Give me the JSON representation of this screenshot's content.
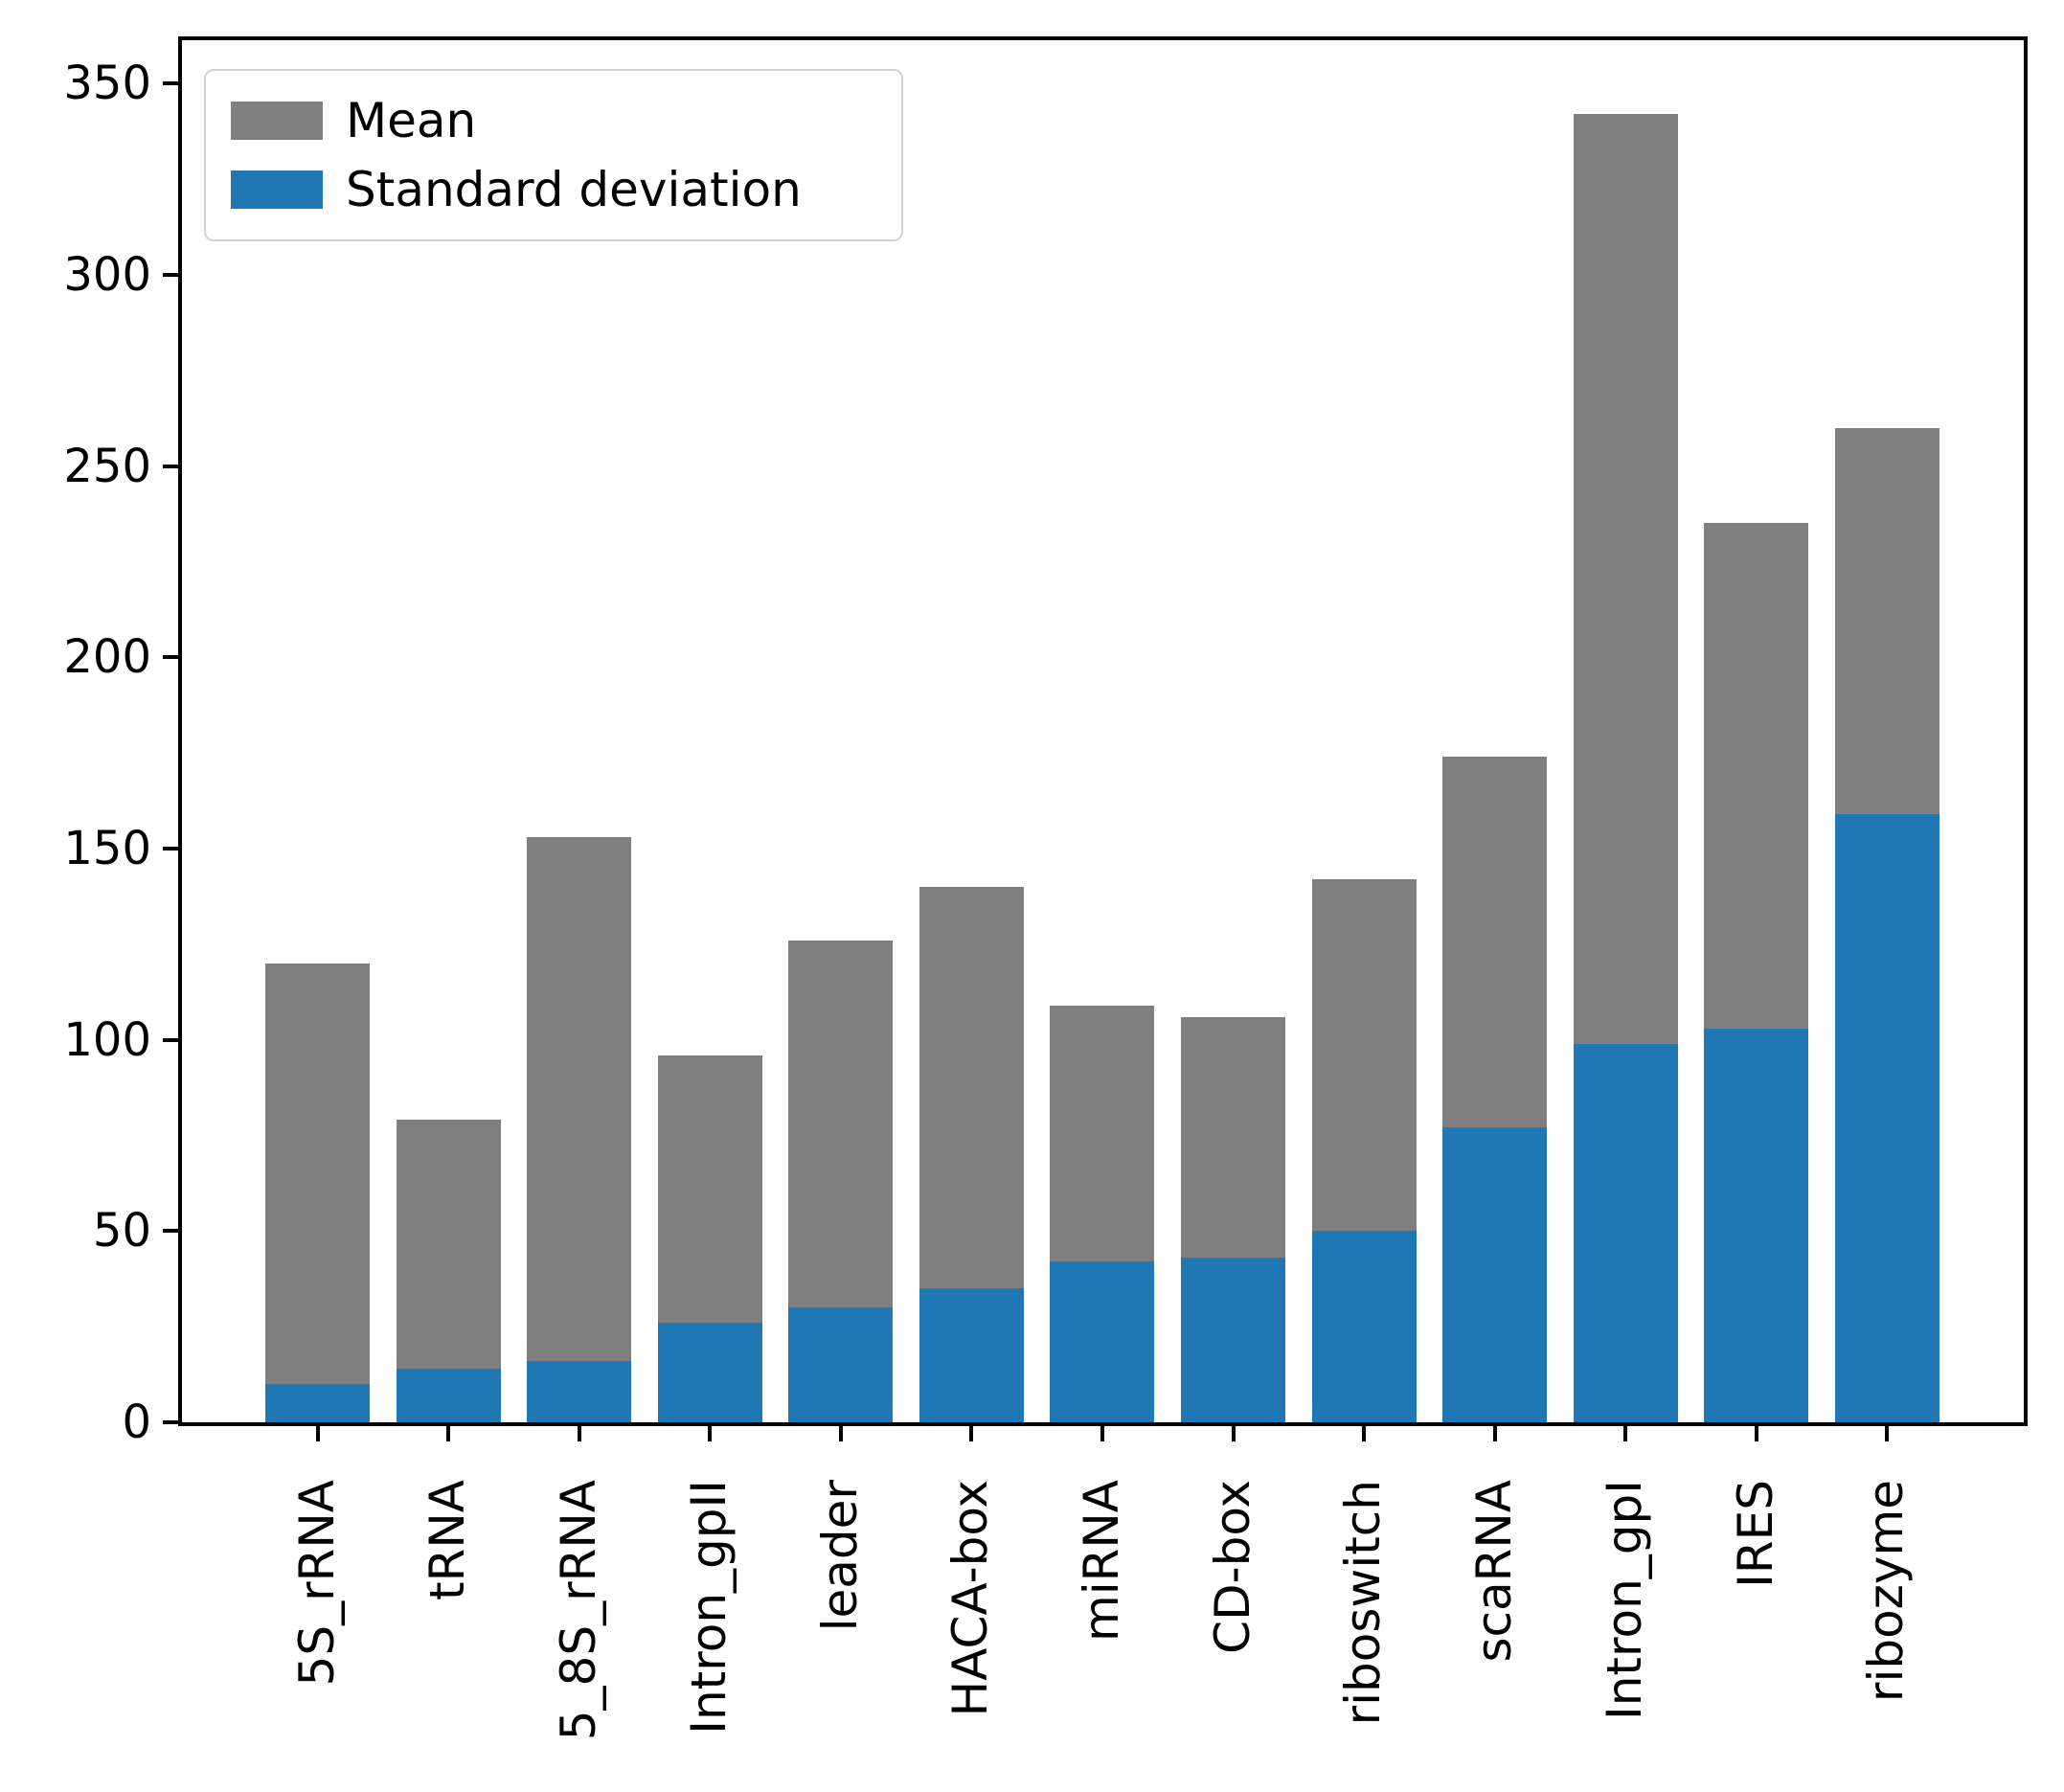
{
  "figure": {
    "background": "#ffffff",
    "axes_color": "#000000"
  },
  "legend": {
    "position": "upper left",
    "items": [
      {
        "label": "Mean",
        "color": "#7f7f7f"
      },
      {
        "label": "Standard deviation",
        "color": "#1f77b4"
      }
    ]
  },
  "chart_data": {
    "type": "bar",
    "title": "",
    "xlabel": "",
    "ylabel": "",
    "categories": [
      "5S_rRNA",
      "tRNA",
      "5_8S_rRNA",
      "Intron_gpII",
      "leader",
      "HACA-box",
      "miRNA",
      "CD-box",
      "riboswitch",
      "scaRNA",
      "Intron_gpI",
      "IRES",
      "ribozyme"
    ],
    "series": [
      {
        "name": "Mean",
        "color": "#7f7f7f",
        "values": [
          120,
          79,
          153,
          96,
          126,
          140,
          109,
          106,
          142,
          174,
          342,
          235,
          260
        ]
      },
      {
        "name": "Standard deviation",
        "color": "#1f77b4",
        "values": [
          10,
          14,
          16,
          26,
          30,
          35,
          42,
          43,
          50,
          77,
          99,
          103,
          159
        ]
      }
    ],
    "bar_style": "overlaid",
    "ylim": [
      0,
      361.3
    ],
    "yticks": [
      0,
      50,
      100,
      150,
      200,
      250,
      300,
      350
    ],
    "xtick_rotation": 90,
    "grid": false,
    "legend_position": "upper left"
  }
}
